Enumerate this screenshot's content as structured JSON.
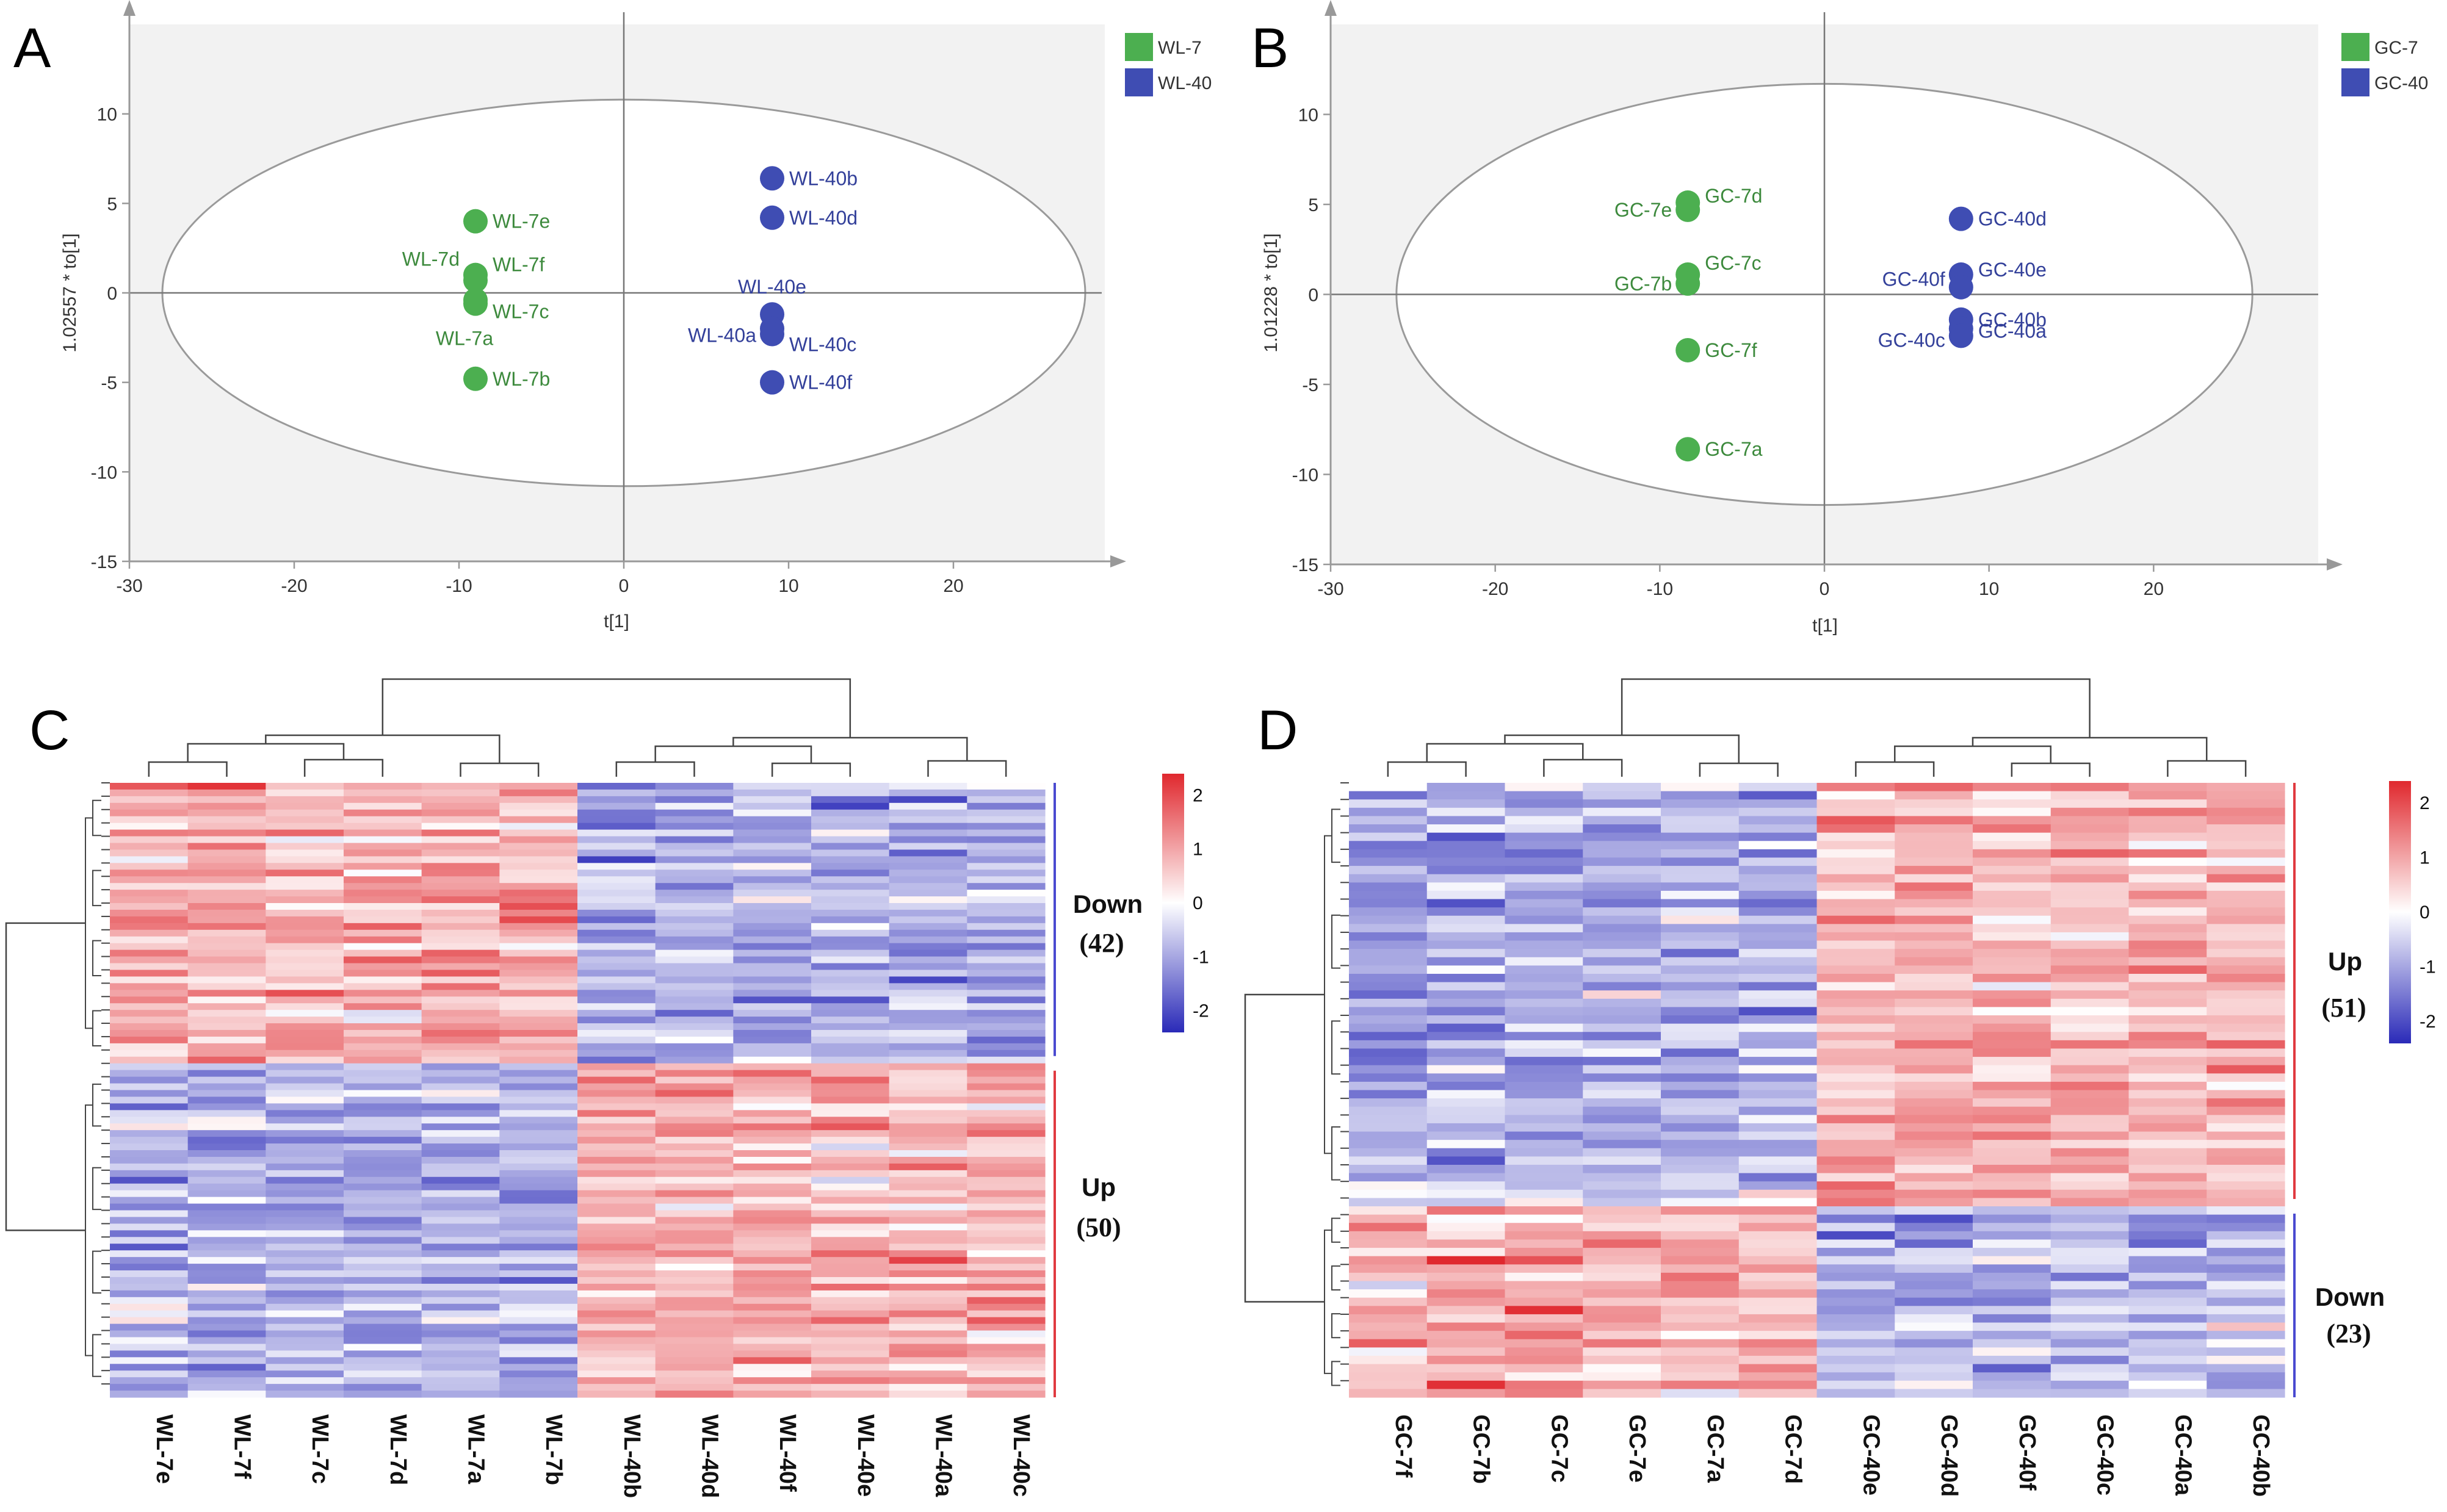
{
  "panels": {
    "A": {
      "letter": "A",
      "xlabel": "t[1]",
      "ylabel": "1.02557 * to[1]",
      "xlim": [
        -30,
        29
      ],
      "ylim": [
        -15,
        15
      ],
      "xticks": [
        -30,
        -20,
        -10,
        0,
        10,
        20
      ],
      "yticks": [
        10,
        5,
        0,
        -5,
        -10,
        -15
      ],
      "legend": [
        {
          "name": "WL-7",
          "color": "#4caf50"
        },
        {
          "name": "WL-40",
          "color": "#3f4db3"
        }
      ],
      "ellipse": {
        "cx": 0,
        "cy": 0,
        "rx": 28,
        "ry": 10.8
      },
      "points": [
        {
          "label": "WL-7e",
          "x": -9,
          "y": 4.0,
          "group": 0
        },
        {
          "label": "WL-7d",
          "x": -9,
          "y": 1.0,
          "group": 0
        },
        {
          "label": "WL-7f",
          "x": -9,
          "y": 0.7,
          "group": 0
        },
        {
          "label": "WL-7c",
          "x": -9,
          "y": -0.4,
          "group": 0
        },
        {
          "label": "WL-7a",
          "x": -9,
          "y": -0.6,
          "group": 0
        },
        {
          "label": "WL-7b",
          "x": -9,
          "y": -4.8,
          "group": 0
        },
        {
          "label": "WL-40b",
          "x": 9,
          "y": 6.4,
          "group": 1
        },
        {
          "label": "WL-40d",
          "x": 9,
          "y": 4.2,
          "group": 1
        },
        {
          "label": "WL-40e",
          "x": 9,
          "y": -1.2,
          "group": 1
        },
        {
          "label": "WL-40a",
          "x": 9,
          "y": -2.0,
          "group": 1
        },
        {
          "label": "WL-40c",
          "x": 9,
          "y": -2.3,
          "group": 1
        },
        {
          "label": "WL-40f",
          "x": 9,
          "y": -5.0,
          "group": 1
        }
      ]
    },
    "B": {
      "letter": "B",
      "xlabel": "t[1]",
      "ylabel": "1.01228 * to[1]",
      "xlim": [
        -30,
        30
      ],
      "ylim": [
        -15,
        15
      ],
      "xticks": [
        -30,
        -20,
        -10,
        0,
        10,
        20
      ],
      "yticks": [
        10,
        5,
        0,
        -5,
        -10,
        -15
      ],
      "legend": [
        {
          "name": "GC-7",
          "color": "#4caf50"
        },
        {
          "name": "GC-40",
          "color": "#3f4db3"
        }
      ],
      "ellipse": {
        "cx": 0,
        "cy": 0,
        "rx": 26,
        "ry": 11.7
      },
      "points": [
        {
          "label": "GC-7d",
          "x": -8.3,
          "y": 5.1,
          "group": 0
        },
        {
          "label": "GC-7e",
          "x": -8.3,
          "y": 4.7,
          "group": 0
        },
        {
          "label": "GC-7c",
          "x": -8.3,
          "y": 1.1,
          "group": 0
        },
        {
          "label": "GC-7b",
          "x": -8.3,
          "y": 0.6,
          "group": 0
        },
        {
          "label": "GC-7f",
          "x": -8.3,
          "y": -3.1,
          "group": 0
        },
        {
          "label": "GC-7a",
          "x": -8.3,
          "y": -8.6,
          "group": 0
        },
        {
          "label": "GC-40d",
          "x": 8.3,
          "y": 4.2,
          "group": 1
        },
        {
          "label": "GC-40e",
          "x": 8.3,
          "y": 1.1,
          "group": 1
        },
        {
          "label": "GC-40f",
          "x": 8.3,
          "y": 0.4,
          "group": 1
        },
        {
          "label": "GC-40b",
          "x": 8.3,
          "y": -1.4,
          "group": 1
        },
        {
          "label": "GC-40a",
          "x": 8.3,
          "y": -1.9,
          "group": 1
        },
        {
          "label": "GC-40c",
          "x": 8.3,
          "y": -2.3,
          "group": 1
        }
      ]
    },
    "C": {
      "letter": "C",
      "columns": [
        "WL-7e",
        "WL-7f",
        "WL-7c",
        "WL-7d",
        "WL-7a",
        "WL-7b",
        "WL-40b",
        "WL-40d",
        "WL-40f",
        "WL-40e",
        "WL-40a",
        "WL-40c"
      ],
      "clusters": [
        {
          "name": "Down",
          "count": "(42)",
          "rows": 42,
          "side": "blue"
        },
        {
          "name": "Up",
          "count": "(50)",
          "rows": 50,
          "side": "red"
        }
      ],
      "pattern": "down-first",
      "colorbar": {
        "ticks": [
          "2",
          "1",
          "0",
          "-1",
          "-2"
        ],
        "min": -2.4,
        "max": 2.4
      }
    },
    "D": {
      "letter": "D",
      "columns": [
        "GC-7f",
        "GC-7b",
        "GC-7c",
        "GC-7e",
        "GC-7a",
        "GC-7d",
        "GC-40e",
        "GC-40d",
        "GC-40f",
        "GC-40c",
        "GC-40a",
        "GC-40b"
      ],
      "clusters": [
        {
          "name": "Up",
          "count": "(51)",
          "rows": 51,
          "side": "red"
        },
        {
          "name": "Down",
          "count": "(23)",
          "rows": 23,
          "side": "blue"
        }
      ],
      "pattern": "up-first",
      "colorbar": {
        "ticks": [
          "2",
          "1",
          "0",
          "-1",
          "-2"
        ],
        "min": -2.4,
        "max": 2.4
      }
    }
  },
  "chart_data": [
    {
      "type": "scatter",
      "title": "A",
      "xlabel": "t[1]",
      "ylabel": "1.02557 * to[1]",
      "xlim": [
        -30,
        29
      ],
      "ylim": [
        -15,
        15
      ],
      "series": [
        {
          "name": "WL-7",
          "x": [
            -9,
            -9,
            -9,
            -9,
            -9,
            -9
          ],
          "y": [
            4.0,
            1.0,
            0.7,
            -0.4,
            -0.6,
            -4.8
          ]
        },
        {
          "name": "WL-40",
          "x": [
            9,
            9,
            9,
            9,
            9,
            9
          ],
          "y": [
            6.4,
            4.2,
            -1.2,
            -2.0,
            -2.3,
            -5.0
          ]
        }
      ]
    },
    {
      "type": "scatter",
      "title": "B",
      "xlabel": "t[1]",
      "ylabel": "1.01228 * to[1]",
      "xlim": [
        -30,
        30
      ],
      "ylim": [
        -15,
        15
      ],
      "series": [
        {
          "name": "GC-7",
          "x": [
            -8.3,
            -8.3,
            -8.3,
            -8.3,
            -8.3,
            -8.3
          ],
          "y": [
            5.1,
            4.7,
            1.1,
            0.6,
            -3.1,
            -8.6
          ]
        },
        {
          "name": "GC-40",
          "x": [
            8.3,
            8.3,
            8.3,
            8.3,
            8.3,
            8.3
          ],
          "y": [
            4.2,
            1.1,
            0.4,
            -1.4,
            -1.9,
            -2.3
          ]
        }
      ]
    },
    {
      "type": "heatmap",
      "title": "C",
      "columns": [
        "WL-7e",
        "WL-7f",
        "WL-7c",
        "WL-7d",
        "WL-7a",
        "WL-7b",
        "WL-40b",
        "WL-40d",
        "WL-40f",
        "WL-40e",
        "WL-40a",
        "WL-40c"
      ],
      "row_groups": [
        {
          "name": "Down",
          "n": 42
        },
        {
          "name": "Up",
          "n": 50
        }
      ],
      "color_range": [
        -2,
        2
      ]
    },
    {
      "type": "heatmap",
      "title": "D",
      "columns": [
        "GC-7f",
        "GC-7b",
        "GC-7c",
        "GC-7e",
        "GC-7a",
        "GC-7d",
        "GC-40e",
        "GC-40d",
        "GC-40f",
        "GC-40c",
        "GC-40a",
        "GC-40b"
      ],
      "row_groups": [
        {
          "name": "Up",
          "n": 51
        },
        {
          "name": "Down",
          "n": 23
        }
      ],
      "color_range": [
        -2,
        2
      ]
    }
  ]
}
